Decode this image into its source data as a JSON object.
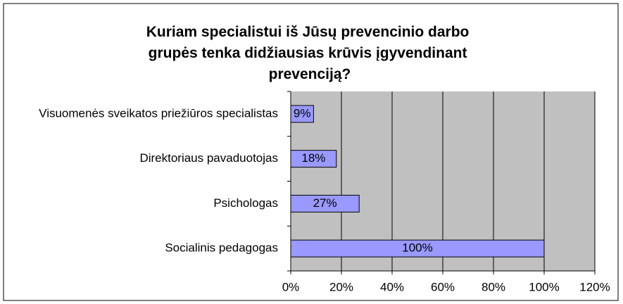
{
  "chart_data": {
    "type": "hbar",
    "title": "Kuriam specialistui iš Jūsų prevencinio darbo grupės tenka didžiausias krūvis įgyvendinant prevenciją?",
    "categories": [
      "Visuomenės sveikatos priežiūros specialistas",
      "Direktoriaus pavaduotojas",
      "Psichologas",
      "Socialinis pedagogas"
    ],
    "values": [
      9,
      18,
      27,
      100
    ],
    "value_labels": [
      "9%",
      "18%",
      "27%",
      "100%"
    ],
    "color": "#9999ff",
    "xlim": [
      0,
      120
    ],
    "xticks": [
      {
        "value": 0,
        "label": "0%"
      },
      {
        "value": 20,
        "label": "20%"
      },
      {
        "value": 40,
        "label": "40%"
      },
      {
        "value": 60,
        "label": "60%"
      },
      {
        "value": 80,
        "label": "80%"
      },
      {
        "value": 100,
        "label": "100%"
      },
      {
        "value": 120,
        "label": "120%"
      }
    ],
    "grid": true
  }
}
